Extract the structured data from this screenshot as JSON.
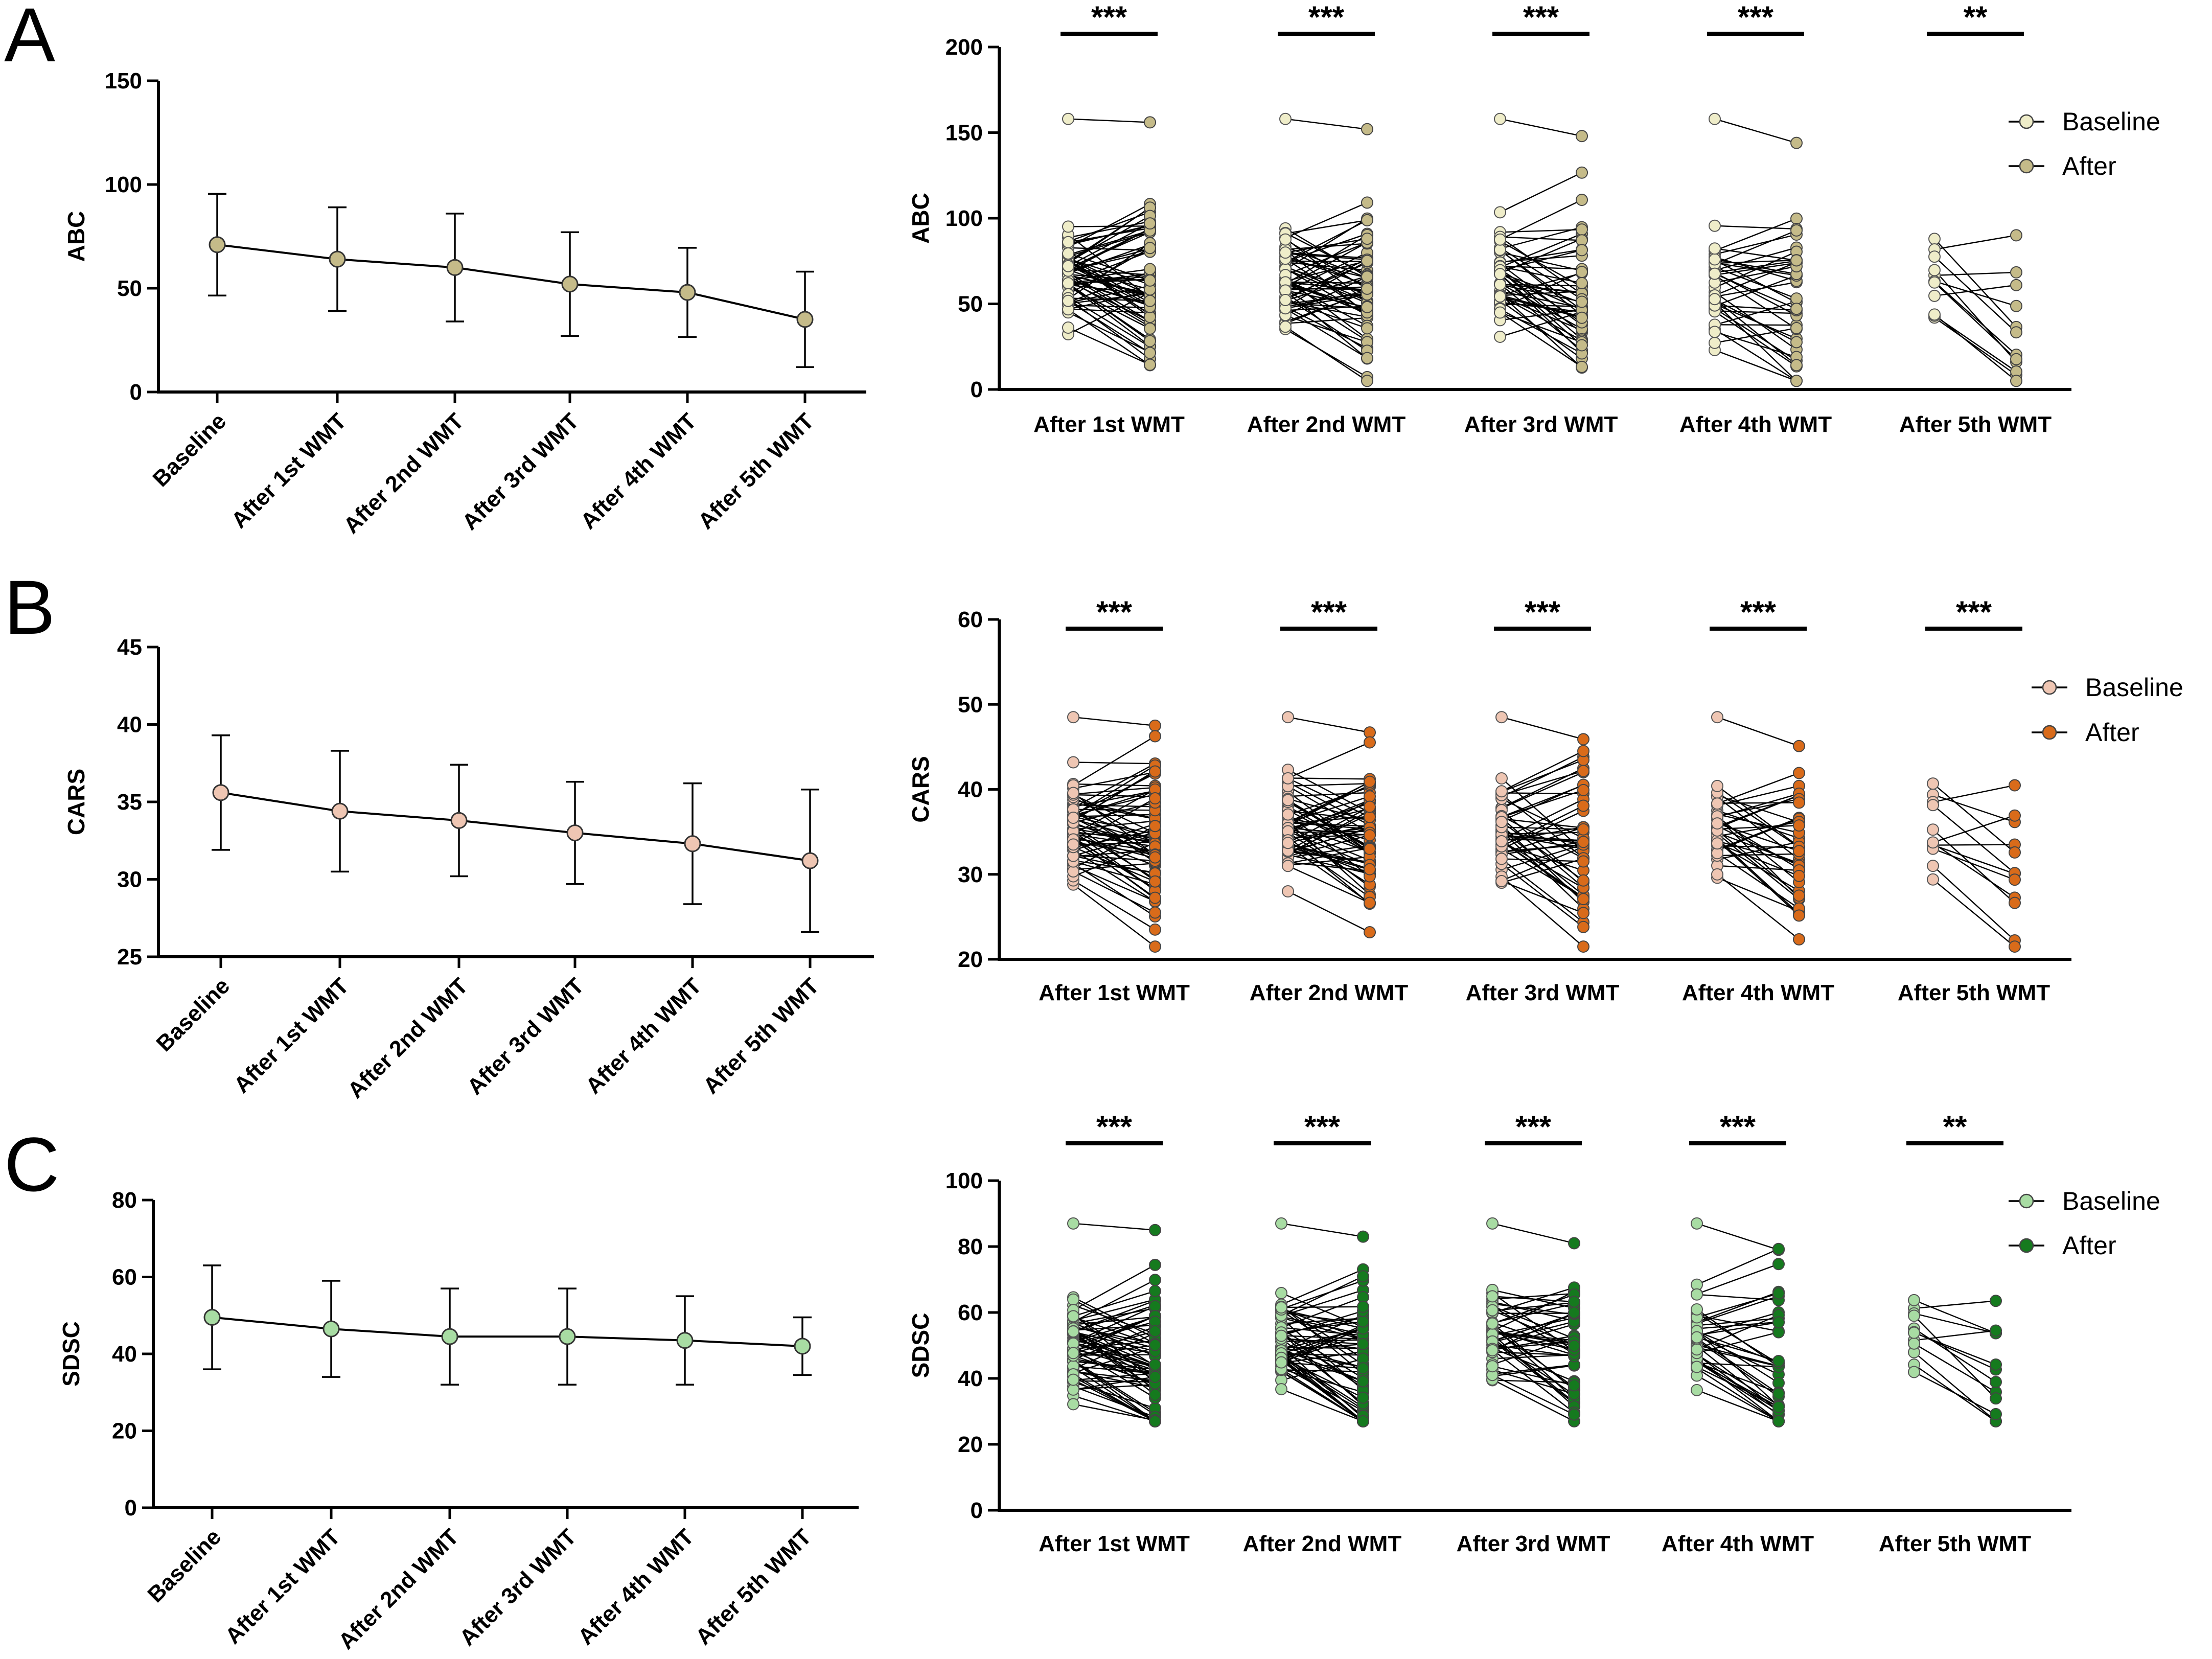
{
  "colors": {
    "abc_base": "#EFEDC9",
    "abc_after": "#C5BB89",
    "cars_base": "#EFC6B3",
    "cars_after": "#D96B1A",
    "sdsc_base": "#A8DCA3",
    "sdsc_after": "#157A1E",
    "line": "#000000"
  },
  "panels": [
    {
      "letter": "A",
      "measure": "ABC",
      "mean_chart": {
        "type": "line",
        "ylabel": "ABC",
        "ylim": [
          0,
          150
        ],
        "yticks": [
          0,
          50,
          100,
          150
        ],
        "categories": [
          "Baseline",
          "After 1st WMT",
          "After 2nd WMT",
          "After 3rd WMT",
          "After 4th WMT",
          "After 5th WMT"
        ],
        "means": [
          71,
          64,
          60,
          52,
          48,
          35
        ],
        "sd": [
          24.5,
          25,
          26,
          25,
          21.5,
          23
        ]
      },
      "paired_chart": {
        "type": "scatter",
        "ylabel": "ABC",
        "ylim": [
          0,
          200
        ],
        "yticks": [
          0,
          50,
          100,
          150,
          200
        ],
        "groups": [
          "After 1st WMT",
          "After 2nd WMT",
          "After 3rd WMT",
          "After 4th WMT",
          "After 5th WMT"
        ],
        "significance": [
          "***",
          "***",
          "***",
          "***",
          "**"
        ],
        "n": [
          70,
          65,
          50,
          38,
          12
        ],
        "base_mean": [
          66,
          65,
          63,
          62,
          58
        ],
        "after_mean": [
          64,
          60,
          52,
          48,
          35
        ],
        "base_range": [
          23,
          158
        ],
        "after_range": [
          5,
          156
        ],
        "legend": [
          "Baseline",
          "After"
        ]
      }
    },
    {
      "letter": "B",
      "measure": "CARS",
      "mean_chart": {
        "type": "line",
        "ylabel": "CARS",
        "ylim": [
          25,
          45
        ],
        "yticks": [
          25,
          30,
          35,
          40,
          45
        ],
        "categories": [
          "Baseline",
          "After 1st WMT",
          "After 2nd WMT",
          "After 3rd WMT",
          "After 4th WMT",
          "After 5th WMT"
        ],
        "means": [
          35.6,
          34.4,
          33.8,
          33.0,
          32.3,
          31.2
        ],
        "sd": [
          3.7,
          3.9,
          3.6,
          3.3,
          3.9,
          4.6
        ]
      },
      "paired_chart": {
        "type": "scatter",
        "ylabel": "CARS",
        "ylim": [
          20,
          60
        ],
        "yticks": [
          20,
          30,
          40,
          50,
          60
        ],
        "groups": [
          "After 1st WMT",
          "After 2nd WMT",
          "After 3rd WMT",
          "After 4th WMT",
          "After 5th WMT"
        ],
        "significance": [
          "***",
          "***",
          "***",
          "***",
          "***"
        ],
        "n": [
          70,
          65,
          50,
          38,
          12
        ],
        "base_mean": [
          35.5,
          35.4,
          35.2,
          35.0,
          34.8
        ],
        "after_mean": [
          34.4,
          33.8,
          33.0,
          32.3,
          31.2
        ],
        "base_range": [
          28,
          48.5
        ],
        "after_range": [
          21.5,
          47.5
        ],
        "legend": [
          "Baseline",
          "After"
        ]
      }
    },
    {
      "letter": "C",
      "measure": "SDSC",
      "mean_chart": {
        "type": "line",
        "ylabel": "SDSC",
        "ylim": [
          0,
          80
        ],
        "yticks": [
          0,
          20,
          40,
          60,
          80
        ],
        "categories": [
          "Baseline",
          "After 1st WMT",
          "After 2nd WMT",
          "After 3rd WMT",
          "After 4th WMT",
          "After 5th WMT"
        ],
        "means": [
          49.5,
          46.5,
          44.5,
          44.5,
          43.5,
          42
        ],
        "sd": [
          13.5,
          12.5,
          12.5,
          12.5,
          11.5,
          7.5
        ]
      },
      "paired_chart": {
        "type": "scatter",
        "ylabel": "SDSC",
        "ylim": [
          0,
          100
        ],
        "yticks": [
          0,
          20,
          40,
          60,
          80,
          100
        ],
        "groups": [
          "After 1st WMT",
          "After 2nd WMT",
          "After 3rd WMT",
          "After 4th WMT",
          "After 5th WMT"
        ],
        "significance": [
          "***",
          "***",
          "***",
          "***",
          "**"
        ],
        "n": [
          70,
          65,
          50,
          38,
          12
        ],
        "base_mean": [
          50,
          50,
          50,
          50,
          52
        ],
        "after_mean": [
          46.5,
          44.5,
          44.5,
          43.5,
          42
        ],
        "base_range": [
          29,
          87
        ],
        "after_range": [
          27,
          85
        ],
        "legend": [
          "Baseline",
          "After"
        ]
      }
    }
  ]
}
